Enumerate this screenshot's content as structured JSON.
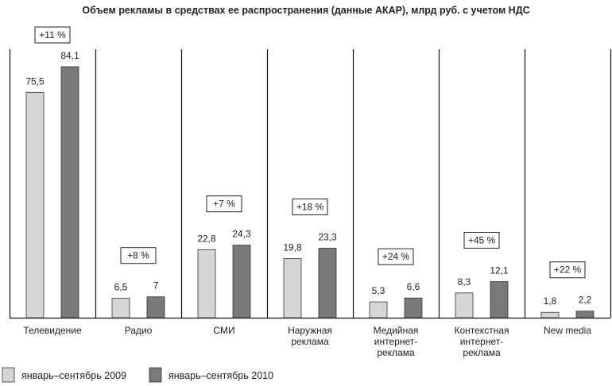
{
  "chart_data": {
    "type": "bar",
    "title": "Объем рекламы в средствах ее распространения (данные АКАР), млрд руб. с учетом НДС",
    "categories": [
      [
        "Телевидение"
      ],
      [
        "Радио"
      ],
      [
        "СМИ"
      ],
      [
        "Наружная",
        "реклама"
      ],
      [
        "Медийная",
        "интернет-",
        "реклама"
      ],
      [
        "Контекстная",
        "интернет-",
        "реклама"
      ],
      [
        "New media"
      ]
    ],
    "series": [
      {
        "name": "январь–сентябрь 2009",
        "color": "#d6d6d6",
        "values": [
          75.5,
          6.5,
          22.8,
          19.8,
          5.3,
          8.3,
          1.8
        ],
        "labels": [
          "75,5",
          "6,5",
          "22,8",
          "19,8",
          "5,3",
          "8,3",
          "1,8"
        ]
      },
      {
        "name": "январь–сентябрь 2010",
        "color": "#7a7a7a",
        "values": [
          84.1,
          7,
          24.3,
          23.3,
          6.6,
          12.1,
          2.2
        ],
        "labels": [
          "84,1",
          "7",
          "24,3",
          "23,3",
          "6,6",
          "12,1",
          "2,2"
        ]
      }
    ],
    "growth": [
      "+11 %",
      "+8 %",
      "+7 %",
      "+18 %",
      "+24 %",
      "+45 %",
      "+22 %"
    ],
    "ylim": [
      0,
      100
    ],
    "grid": false,
    "legend_position": "bottom-left"
  }
}
